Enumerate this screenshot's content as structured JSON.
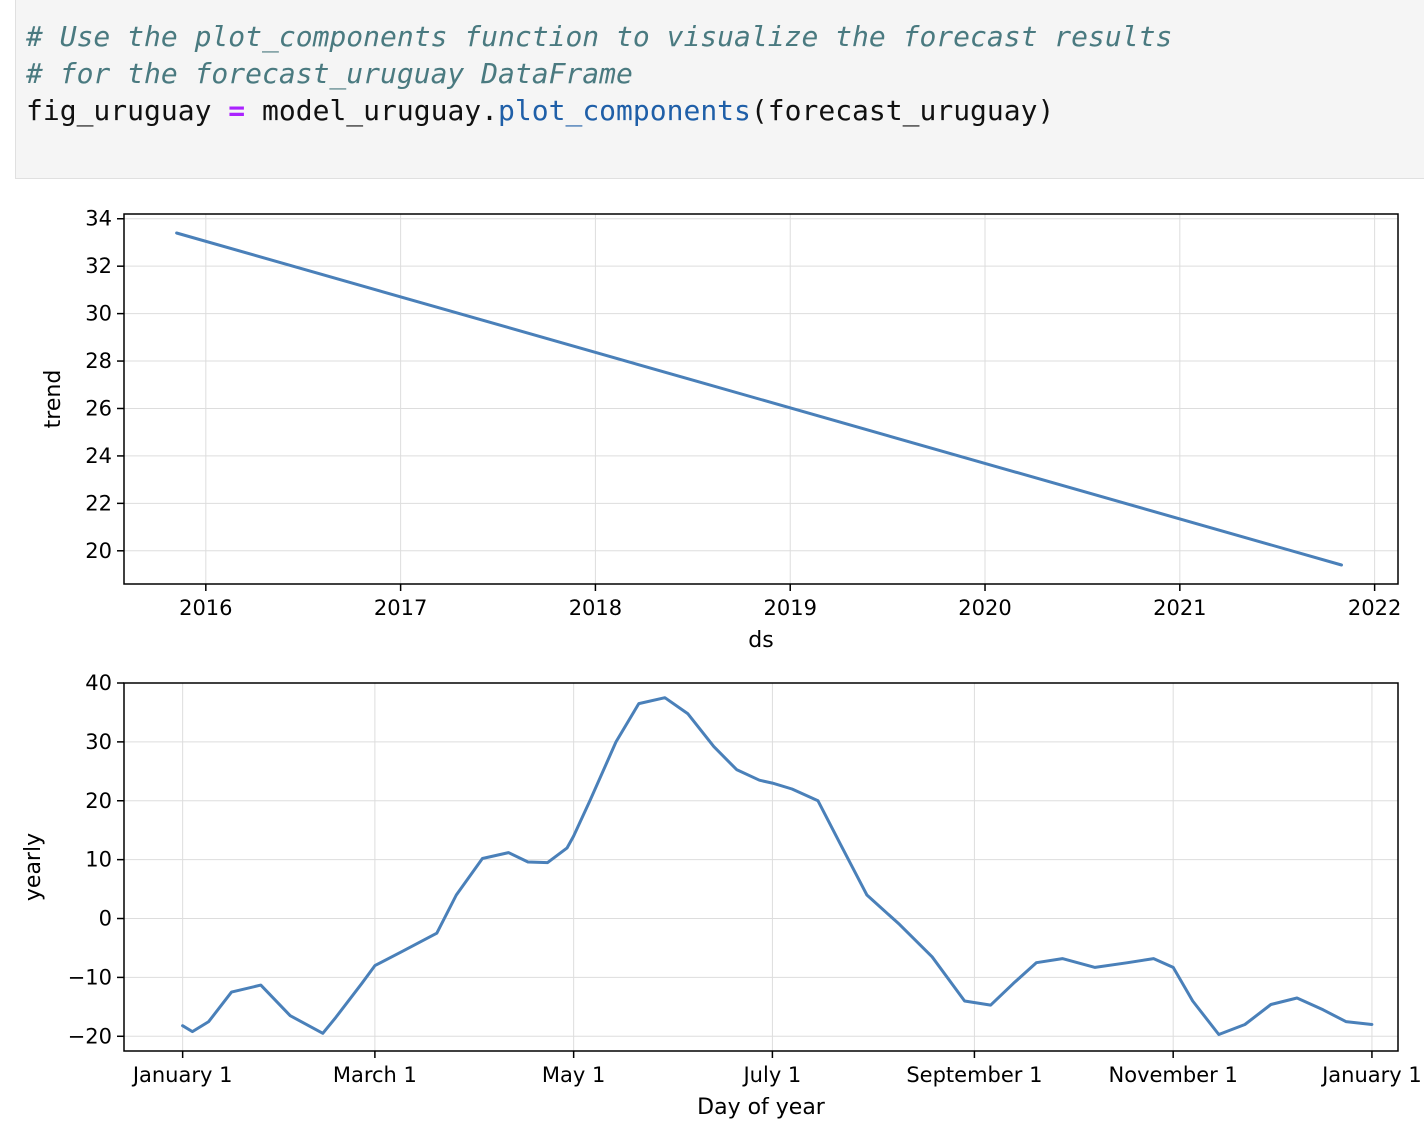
{
  "code_cell": {
    "comment_1": "# Use the plot_components function to visualize the forecast results",
    "comment_2": "# for the forecast_uruguay DataFrame",
    "line_3_var": "fig_uruguay",
    "line_3_op": "=",
    "line_3_obj": "model_uruguay.",
    "line_3_method": "plot_components",
    "line_3_args": "(forecast_uruguay)"
  },
  "colors": {
    "line": "#4a80b9",
    "grid": "#dddddd",
    "axes": "#000000"
  },
  "chart_data": [
    {
      "type": "line",
      "xlabel": "ds",
      "ylabel": "trend",
      "x_ticks": [
        "2016",
        "2017",
        "2018",
        "2019",
        "2020",
        "2021",
        "2022"
      ],
      "y_ticks": [
        "20",
        "22",
        "24",
        "26",
        "28",
        "30",
        "32",
        "34"
      ],
      "xlim": [
        2015.58,
        2022.12
      ],
      "ylim": [
        18.6,
        34.2
      ],
      "grid": true,
      "series": [
        {
          "x": [
            2015.85,
            2021.83
          ],
          "values": [
            33.4,
            19.4
          ]
        }
      ]
    },
    {
      "type": "line",
      "xlabel": "Day of year",
      "ylabel": "yearly",
      "x_ticks": [
        "January 1",
        "March 1",
        "May 1",
        "July 1",
        "September 1",
        "November 1",
        "January 1"
      ],
      "x_tick_days": [
        0,
        59,
        120,
        181,
        243,
        304,
        365
      ],
      "y_ticks": [
        "-20",
        "-10",
        "0",
        "10",
        "20",
        "30",
        "40"
      ],
      "xlim": [
        -18,
        373
      ],
      "ylim": [
        -22.5,
        40
      ],
      "grid": true,
      "series": [
        {
          "x": [
            0,
            3,
            8,
            15,
            24,
            33,
            43,
            47,
            55,
            59,
            67,
            78,
            84,
            92,
            100,
            106,
            112,
            118,
            120,
            125,
            133,
            140,
            148,
            155,
            163,
            170,
            177,
            181,
            187,
            195,
            202,
            210,
            220,
            230,
            240,
            248,
            255,
            262,
            270,
            280,
            290,
            298,
            304,
            310,
            318,
            326,
            334,
            342,
            350,
            357,
            365
          ],
          "values": [
            -18.2,
            -19.2,
            -17.5,
            -12.5,
            -11.3,
            -16.5,
            -19.5,
            -16.8,
            -11.0,
            -8.0,
            -5.7,
            -2.5,
            4.0,
            10.2,
            11.2,
            9.6,
            9.5,
            12.0,
            14.0,
            20.0,
            30.0,
            36.5,
            37.5,
            34.8,
            29.2,
            25.3,
            23.5,
            23.0,
            22.0,
            20.0,
            12.5,
            4.0,
            -1.0,
            -6.5,
            -14.0,
            -14.7,
            -11.0,
            -7.5,
            -6.8,
            -8.3,
            -7.5,
            -6.8,
            -8.3,
            -14.0,
            -19.7,
            -18.0,
            -14.6,
            -13.5,
            -15.5,
            -17.5,
            -18.0
          ]
        }
      ]
    }
  ]
}
